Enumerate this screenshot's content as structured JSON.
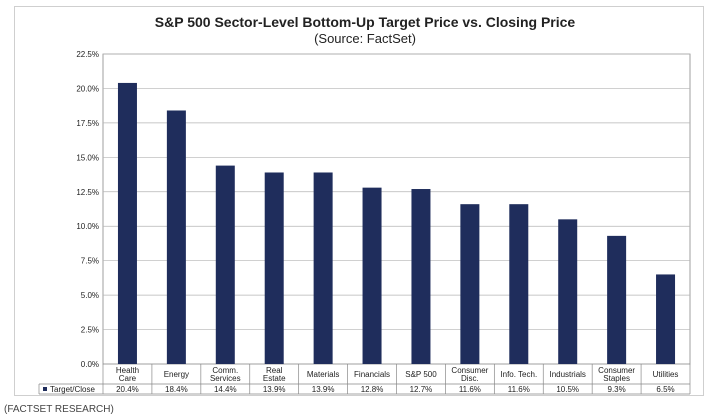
{
  "caption": "(FACTSET RESEARCH)",
  "chart_data": {
    "type": "bar",
    "title": "S&P 500 Sector-Level Bottom-Up Target Price vs. Closing Price",
    "subtitle": "(Source: FactSet)",
    "categories": [
      [
        "Health",
        "Care"
      ],
      [
        "Energy"
      ],
      [
        "Comm.",
        "Services"
      ],
      [
        "Real",
        "Estate"
      ],
      [
        "Materials"
      ],
      [
        "Financials"
      ],
      [
        "S&P 500"
      ],
      [
        "Consumer",
        "Disc."
      ],
      [
        "Info. Tech."
      ],
      [
        "Industrials"
      ],
      [
        "Consumer",
        "Staples"
      ],
      [
        "Utilities"
      ]
    ],
    "series": [
      {
        "name": "Target/Close",
        "values": [
          20.4,
          18.4,
          14.4,
          13.9,
          13.9,
          12.8,
          12.7,
          11.6,
          11.6,
          10.5,
          9.3,
          6.5
        ],
        "labels": [
          "20.4%",
          "18.4%",
          "14.4%",
          "13.9%",
          "13.9%",
          "12.8%",
          "12.7%",
          "11.6%",
          "11.6%",
          "10.5%",
          "9.3%",
          "6.5%"
        ],
        "color": "#1f2d5c"
      }
    ],
    "yticks": [
      "0.0%",
      "2.5%",
      "5.0%",
      "7.5%",
      "10.0%",
      "12.5%",
      "15.0%",
      "17.5%",
      "20.0%",
      "22.5%"
    ],
    "ylim": [
      0,
      22.5
    ],
    "grid": true,
    "legend": "data-table-bottom"
  }
}
